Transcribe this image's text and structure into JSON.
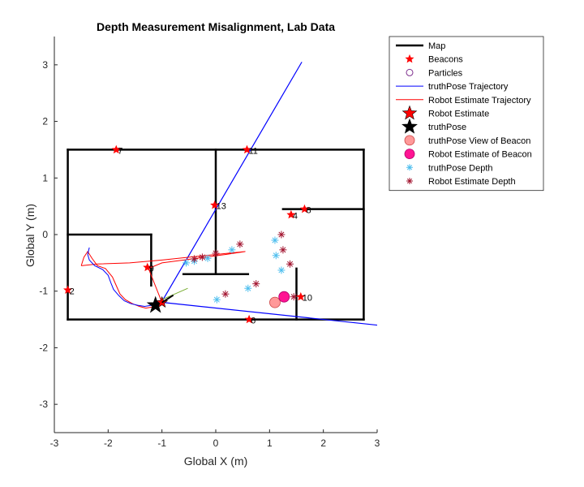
{
  "chart_data": {
    "type": "scatter",
    "title": "Depth Measurement Misalignment, Lab Data",
    "xlabel": "Global X (m)",
    "ylabel": "Global Y (m)",
    "xlim": [
      -3,
      3
    ],
    "ylim": [
      -3.5,
      3.5
    ],
    "xticks": [
      -3,
      -2,
      -1,
      0,
      1,
      2,
      3
    ],
    "yticks": [
      -3,
      -2,
      -1,
      0,
      1,
      2,
      3
    ],
    "grid": false,
    "legend_position": "outside-top-right",
    "colors": {
      "map": "#000000",
      "beacon": "#ff0000",
      "particle": "#7e2f8e",
      "truth_traj": "#0000ff",
      "est_traj": "#ff0000",
      "truth_view_beacon": "#ff9999",
      "est_beacon": "#ff1493",
      "truth_depth": "#4dbeee",
      "est_depth": "#a2142f"
    },
    "legend": [
      {
        "key": "map",
        "label": "Map"
      },
      {
        "key": "beacons",
        "label": "Beacons"
      },
      {
        "key": "particles",
        "label": "Particles"
      },
      {
        "key": "truth_traj",
        "label": "truthPose Trajectory"
      },
      {
        "key": "est_traj",
        "label": "Robot Estimate Trajectory"
      },
      {
        "key": "robot_est",
        "label": "Robot Estimate"
      },
      {
        "key": "truth_pose",
        "label": "truthPose"
      },
      {
        "key": "truth_view",
        "label": "truthPose View of Beacon"
      },
      {
        "key": "est_beacon",
        "label": "Robot Estimate of Beacon"
      },
      {
        "key": "truth_depth",
        "label": "truthPose Depth"
      },
      {
        "key": "est_depth",
        "label": "Robot Estimate Depth"
      }
    ],
    "map_walls": [
      [
        [
          -2.75,
          1.5
        ],
        [
          2.75,
          1.5
        ]
      ],
      [
        [
          2.75,
          1.5
        ],
        [
          2.75,
          -1.5
        ]
      ],
      [
        [
          2.75,
          -1.5
        ],
        [
          -2.75,
          -1.5
        ]
      ],
      [
        [
          -2.75,
          -1.5
        ],
        [
          -2.75,
          1.5
        ]
      ],
      [
        [
          0,
          1.5
        ],
        [
          0,
          -0.7
        ]
      ],
      [
        [
          -0.6,
          -0.7
        ],
        [
          0.6,
          -0.7
        ]
      ],
      [
        [
          -2.75,
          0
        ],
        [
          -1.2,
          0
        ]
      ],
      [
        [
          -1.2,
          0
        ],
        [
          -1.2,
          -0.9
        ]
      ],
      [
        [
          1.25,
          0.45
        ],
        [
          2.75,
          0.45
        ]
      ],
      [
        [
          1.5,
          -0.6
        ],
        [
          1.5,
          -1.5
        ]
      ]
    ],
    "beacons": [
      {
        "id": "7",
        "x": -1.85,
        "y": 1.5
      },
      {
        "id": "11",
        "x": 0.58,
        "y": 1.5
      },
      {
        "id": "13",
        "x": -0.02,
        "y": 0.52
      },
      {
        "id": "8",
        "x": 1.65,
        "y": 0.45
      },
      {
        "id": "4",
        "x": 1.4,
        "y": 0.35
      },
      {
        "id": "9",
        "x": -1.27,
        "y": -0.58
      },
      {
        "id": "2",
        "x": -2.75,
        "y": -0.98
      },
      {
        "id": "10",
        "x": 1.58,
        "y": -1.1
      },
      {
        "id": "6",
        "x": 0.62,
        "y": -1.5
      }
    ],
    "truth_trajectory": [
      [
        -2.35,
        -0.23
      ],
      [
        -2.38,
        -0.35
      ],
      [
        -2.35,
        -0.45
      ],
      [
        -2.25,
        -0.55
      ],
      [
        -2.1,
        -0.62
      ],
      [
        -2.0,
        -0.72
      ],
      [
        -1.95,
        -0.85
      ],
      [
        -1.9,
        -0.97
      ],
      [
        -1.8,
        -1.08
      ],
      [
        -1.7,
        -1.17
      ],
      [
        -1.58,
        -1.22
      ],
      [
        -1.45,
        -1.25
      ],
      [
        -1.32,
        -1.27
      ],
      [
        -1.2,
        -1.25
      ],
      [
        -1.1,
        -1.2
      ],
      [
        -1.02,
        -1.18
      ]
    ],
    "estimate_trajectory": [
      [
        -2.5,
        -0.55
      ],
      [
        -2.45,
        -0.4
      ],
      [
        -2.38,
        -0.3
      ],
      [
        -2.3,
        -0.42
      ],
      [
        -2.2,
        -0.55
      ],
      [
        -2.05,
        -0.6
      ],
      [
        -1.92,
        -0.75
      ],
      [
        -1.85,
        -0.9
      ],
      [
        -1.78,
        -1.05
      ],
      [
        -1.68,
        -1.15
      ],
      [
        -1.55,
        -1.22
      ],
      [
        -1.42,
        -1.27
      ],
      [
        -1.3,
        -1.3
      ],
      [
        -1.18,
        -1.28
      ],
      [
        -1.08,
        -1.22
      ],
      [
        -1.0,
        -1.2
      ],
      [
        -1.25,
        -0.6
      ],
      [
        -1.0,
        -0.5
      ],
      [
        -0.6,
        -0.45
      ],
      [
        -0.2,
        -0.4
      ],
      [
        0.2,
        -0.35
      ],
      [
        0.55,
        -0.3
      ],
      [
        -0.3,
        -0.38
      ],
      [
        -1.0,
        -0.45
      ],
      [
        -1.6,
        -0.5
      ],
      [
        -2.2,
        -0.52
      ],
      [
        -2.5,
        -0.55
      ]
    ],
    "truth_view_lines": [
      [
        [
          -0.98,
          -1.15
        ],
        [
          1.6,
          3.05
        ]
      ],
      [
        [
          -0.98,
          -1.2
        ],
        [
          3.0,
          -1.6
        ]
      ]
    ],
    "estimate_heading_line": [
      [
        -1.0,
        -1.15
      ],
      [
        -0.52,
        -0.95
      ]
    ],
    "robot_estimate": {
      "x": -1.0,
      "y": -1.2
    },
    "truth_pose": {
      "x": -1.12,
      "y": -1.25
    },
    "truth_view_of_beacon": [
      {
        "x": 1.1,
        "y": -1.2
      }
    ],
    "estimate_of_beacon": [
      {
        "x": 1.27,
        "y": -1.1
      }
    ],
    "truth_depth": [
      [
        -0.55,
        -0.5
      ],
      [
        -0.4,
        -0.47
      ],
      [
        -0.15,
        -0.42
      ],
      [
        0.3,
        -0.27
      ],
      [
        0.6,
        -0.95
      ],
      [
        1.1,
        -0.1
      ],
      [
        1.12,
        -0.37
      ],
      [
        1.22,
        -0.63
      ],
      [
        0.02,
        -1.15
      ]
    ],
    "estimate_depth": [
      [
        -0.4,
        -0.43
      ],
      [
        -0.25,
        -0.4
      ],
      [
        0.0,
        -0.33
      ],
      [
        0.45,
        -0.17
      ],
      [
        0.75,
        -0.87
      ],
      [
        1.22,
        0.0
      ],
      [
        1.25,
        -0.27
      ],
      [
        1.38,
        -0.52
      ],
      [
        0.18,
        -1.05
      ],
      [
        1.45,
        -1.1
      ]
    ]
  }
}
